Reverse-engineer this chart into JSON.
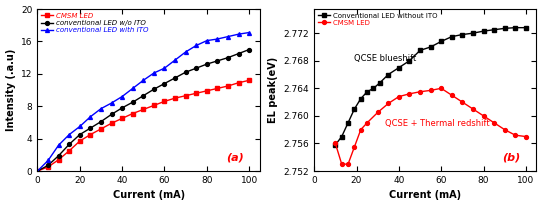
{
  "panel_a": {
    "title": "(a)",
    "xlabel": "Current (mA)",
    "ylabel": "Intensity (.a.u)",
    "xlim": [
      0,
      105
    ],
    "ylim": [
      0,
      20
    ],
    "yticks": [
      0,
      4,
      8,
      12,
      16,
      20
    ],
    "xticks": [
      0,
      20,
      40,
      60,
      80,
      100
    ],
    "cmsm_led": {
      "label": "CMSM LED",
      "color": "red",
      "marker": "s",
      "x": [
        0,
        5,
        10,
        15,
        20,
        25,
        30,
        35,
        40,
        45,
        50,
        55,
        60,
        65,
        70,
        75,
        80,
        85,
        90,
        95,
        100
      ],
      "y": [
        0,
        0.5,
        1.4,
        2.5,
        3.7,
        4.5,
        5.2,
        5.9,
        6.5,
        7.1,
        7.6,
        8.1,
        8.6,
        9.0,
        9.3,
        9.6,
        9.9,
        10.2,
        10.5,
        10.9,
        11.2
      ]
    },
    "conv_wo_ito": {
      "label": "conventional LED w/o ITO",
      "color": "black",
      "marker": "o",
      "x": [
        0,
        5,
        10,
        15,
        20,
        25,
        30,
        35,
        40,
        45,
        50,
        55,
        60,
        65,
        70,
        75,
        80,
        85,
        90,
        95,
        100
      ],
      "y": [
        0,
        0.7,
        1.9,
        3.3,
        4.5,
        5.3,
        6.1,
        7.0,
        7.8,
        8.5,
        9.3,
        10.1,
        10.8,
        11.5,
        12.2,
        12.7,
        13.2,
        13.6,
        14.0,
        14.5,
        15.0
      ]
    },
    "conv_with_ito": {
      "label": "conventional LED with ITO",
      "color": "blue",
      "marker": "^",
      "x": [
        0,
        5,
        10,
        15,
        20,
        25,
        30,
        35,
        40,
        45,
        50,
        55,
        60,
        65,
        70,
        75,
        80,
        85,
        90,
        95,
        100
      ],
      "y": [
        0,
        1.3,
        3.2,
        4.5,
        5.5,
        6.7,
        7.7,
        8.4,
        9.2,
        10.2,
        11.2,
        12.1,
        12.7,
        13.7,
        14.7,
        15.5,
        16.1,
        16.3,
        16.6,
        16.9,
        17.1
      ]
    }
  },
  "panel_b": {
    "title": "(b)",
    "xlabel": "Current (mA)",
    "ylabel": "EL peak(eV)",
    "xlim": [
      0,
      105
    ],
    "ylim": [
      2.752,
      2.7755
    ],
    "yticks": [
      2.752,
      2.756,
      2.76,
      2.764,
      2.768,
      2.772
    ],
    "xticks": [
      0,
      20,
      40,
      60,
      80,
      100
    ],
    "conv_wo_ito": {
      "label": "Conventional LED without ITO",
      "color": "black",
      "marker": "s",
      "x": [
        10,
        13,
        16,
        19,
        22,
        25,
        28,
        31,
        35,
        40,
        45,
        50,
        55,
        60,
        65,
        70,
        75,
        80,
        85,
        90,
        95,
        100
      ],
      "y": [
        2.7558,
        2.757,
        2.759,
        2.761,
        2.7625,
        2.7635,
        2.764,
        2.7648,
        2.766,
        2.767,
        2.768,
        2.7695,
        2.77,
        2.7708,
        2.7715,
        2.7718,
        2.772,
        2.7723,
        2.7725,
        2.7727,
        2.7728,
        2.7728
      ]
    },
    "cmsm_led": {
      "label": "CMSM LED",
      "color": "red",
      "marker": "o",
      "x": [
        10,
        13,
        16,
        19,
        22,
        25,
        30,
        35,
        40,
        45,
        50,
        55,
        60,
        65,
        70,
        75,
        80,
        85,
        90,
        95,
        100
      ],
      "y": [
        2.756,
        2.753,
        2.753,
        2.7555,
        2.758,
        2.759,
        2.7605,
        2.7618,
        2.7628,
        2.7632,
        2.7635,
        2.7637,
        2.764,
        2.763,
        2.762,
        2.761,
        2.76,
        2.759,
        2.758,
        2.7572,
        2.757
      ]
    },
    "annotation1": "QCSE blueshift",
    "annotation2": "QCSE + Thermal redshift"
  }
}
